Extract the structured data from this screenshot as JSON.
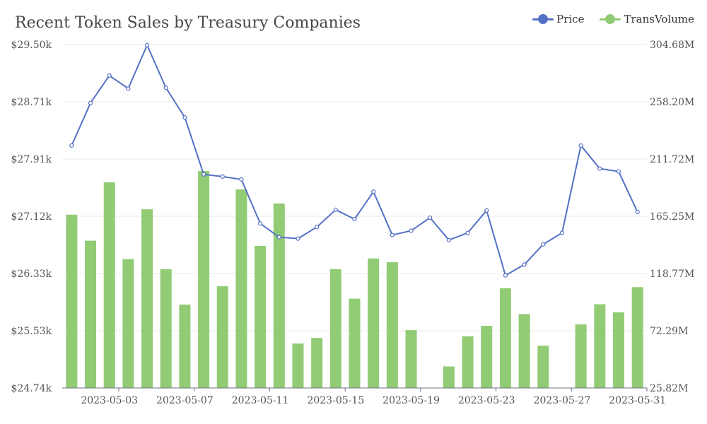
{
  "colors": {
    "price": "#5470c6",
    "volume": "#91cc75",
    "grid": "#eaeaea",
    "axis": "#6e7079",
    "text": "#555555"
  },
  "chart_data": {
    "type": "bar+line",
    "title": "Recent Token Sales by Treasury Companies",
    "legend_position": "top-right",
    "grid": true,
    "x": [
      "2023-05-01",
      "2023-05-02",
      "2023-05-03",
      "2023-05-04",
      "2023-05-05",
      "2023-05-06",
      "2023-05-07",
      "2023-05-08",
      "2023-05-09",
      "2023-05-10",
      "2023-05-11",
      "2023-05-12",
      "2023-05-13",
      "2023-05-14",
      "2023-05-15",
      "2023-05-16",
      "2023-05-17",
      "2023-05-18",
      "2023-05-19",
      "2023-05-20",
      "2023-05-21",
      "2023-05-22",
      "2023-05-23",
      "2023-05-24",
      "2023-05-25",
      "2023-05-26",
      "2023-05-27",
      "2023-05-28",
      "2023-05-29",
      "2023-05-30",
      "2023-05-31"
    ],
    "x_tick_labels": [
      "2023-05-03",
      "2023-05-07",
      "2023-05-11",
      "2023-05-15",
      "2023-05-19",
      "2023-05-23",
      "2023-05-27",
      "2023-05-31"
    ],
    "left_axis": {
      "ylim": [
        24.74,
        29.5
      ],
      "tick_labels": [
        "$24.74k",
        "$25.53k",
        "$26.33k",
        "$27.12k",
        "$27.91k",
        "$28.71k",
        "$29.50k"
      ]
    },
    "right_axis": {
      "ylim": [
        25.82,
        304.68
      ],
      "tick_labels": [
        "25.82M",
        "72.29M",
        "118.77M",
        "165.25M",
        "211.72M",
        "258.20M",
        "304.68M"
      ]
    },
    "series": [
      {
        "name": "Price",
        "type": "line",
        "axis": "left",
        "unit": "k USD",
        "values": [
          28.1,
          28.69,
          29.07,
          28.89,
          29.49,
          28.9,
          28.49,
          27.7,
          27.67,
          27.63,
          27.02,
          26.83,
          26.81,
          26.97,
          27.21,
          27.08,
          27.46,
          26.86,
          26.92,
          27.1,
          26.79,
          26.89,
          27.2,
          26.3,
          26.45,
          26.73,
          26.89,
          28.1,
          27.78,
          27.74,
          27.18
        ]
      },
      {
        "name": "TransVolume",
        "type": "bar",
        "axis": "right",
        "unit": "M",
        "values": [
          166.5,
          145.4,
          192.8,
          130.5,
          170.9,
          122.2,
          93.5,
          202.0,
          108.4,
          187.0,
          141.2,
          175.6,
          61.9,
          66.5,
          122.3,
          98.3,
          131.0,
          128.0,
          72.8,
          25.82,
          43.3,
          67.7,
          76.3,
          106.8,
          85.8,
          60.1,
          25.82,
          77.4,
          93.8,
          87.2,
          107.7
        ]
      }
    ]
  }
}
